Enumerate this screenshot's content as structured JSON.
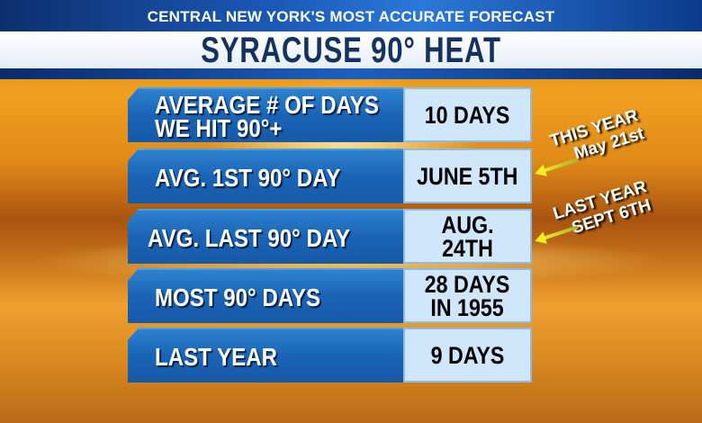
{
  "header": {
    "tagline": "CENTRAL NEW YORK'S MOST ACCURATE FORECAST",
    "title": "SYRACUSE 90° HEAT"
  },
  "rows": [
    {
      "label": "AVERAGE # OF DAYS\nWE HIT 90°+",
      "value": "10 DAYS"
    },
    {
      "label": "AVG. 1ST 90° DAY",
      "value": "JUNE 5TH"
    },
    {
      "label": "AVG. LAST 90° DAY",
      "value": "AUG. 24TH"
    },
    {
      "label": "MOST 90° DAYS",
      "value": "28 DAYS\nIN 1955"
    },
    {
      "label": "LAST YEAR",
      "value": "9 DAYS"
    }
  ],
  "annotations": [
    {
      "line1": "THIS YEAR",
      "line2": "May 21st"
    },
    {
      "line1": "LAST YEAR",
      "line2": "SEPT 6TH"
    }
  ],
  "colors": {
    "accent_blue": "#1a63b5",
    "value_bg": "#cfe6fb",
    "arrow": "#f4f020"
  }
}
